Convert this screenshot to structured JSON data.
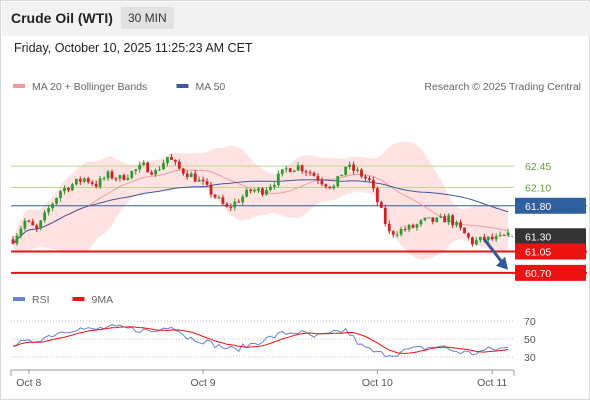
{
  "header": {
    "title": "Crude Oil (WTI)",
    "interval": "30 MIN",
    "datetime": "Friday, October 10, 2025 11:25:23 AM CET",
    "credit": "Research © 2025 Trading Central"
  },
  "colors": {
    "up_candle": "#2e9b2e",
    "down_candle": "#cc2222",
    "bollinger_fill": "#ffd9d9",
    "ma20": "#f29a9a",
    "ma50": "#3d5a99",
    "resistance_line": "#b5d98a",
    "pivot_line": "#2f5f9f",
    "support_line": "#ee1111",
    "current_price_box": "#333333",
    "arrow": "#2e5a9c",
    "rsi": "#6a7fd6",
    "rsi_ma": "#ee1111"
  },
  "chart_data": {
    "type": "candlestick",
    "instrument": "Crude Oil (WTI)",
    "timeframe": "30 MIN",
    "legend": [
      {
        "label": "MA 20 + Bollinger Bands",
        "color": "#f29a9a"
      },
      {
        "label": "MA 50",
        "color": "#3d5a99"
      }
    ],
    "ylim": [
      60.55,
      63.6
    ],
    "x_ticks": [
      "Oct 8",
      "Oct 9",
      "Oct 10",
      "Oct 11"
    ],
    "x_tick_index": [
      4,
      48,
      92,
      121
    ],
    "n_bars": 126,
    "levels": [
      {
        "label": "62.45",
        "value": 62.45,
        "kind": "resistance",
        "boxed": false
      },
      {
        "label": "62.10",
        "value": 62.1,
        "kind": "resistance",
        "boxed": false
      },
      {
        "label": "61.80",
        "value": 61.8,
        "kind": "pivot",
        "boxed": true
      },
      {
        "label": "61.30",
        "value": 61.3,
        "kind": "current",
        "boxed": true
      },
      {
        "label": "61.05",
        "value": 61.05,
        "kind": "support",
        "boxed": true
      },
      {
        "label": "60.70",
        "value": 60.7,
        "kind": "support",
        "boxed": true
      }
    ],
    "arrow": {
      "from_index": 119,
      "from_value": 61.25,
      "to_index": 126,
      "to_value": 60.75
    },
    "anchors": [
      [
        0,
        61.25
      ],
      [
        3,
        61.55
      ],
      [
        6,
        61.4
      ],
      [
        9,
        61.75
      ],
      [
        12,
        62.05
      ],
      [
        15,
        62.15
      ],
      [
        18,
        62.25
      ],
      [
        21,
        62.15
      ],
      [
        24,
        62.3
      ],
      [
        27,
        62.25
      ],
      [
        30,
        62.35
      ],
      [
        33,
        62.45
      ],
      [
        36,
        62.35
      ],
      [
        39,
        62.6
      ],
      [
        42,
        62.4
      ],
      [
        45,
        62.3
      ],
      [
        48,
        62.15
      ],
      [
        51,
        61.95
      ],
      [
        54,
        61.75
      ],
      [
        57,
        61.9
      ],
      [
        60,
        62.05
      ],
      [
        63,
        62.05
      ],
      [
        66,
        62.2
      ],
      [
        69,
        62.4
      ],
      [
        72,
        62.45
      ],
      [
        75,
        62.35
      ],
      [
        78,
        62.2
      ],
      [
        81,
        62.1
      ],
      [
        84,
        62.45
      ],
      [
        87,
        62.35
      ],
      [
        90,
        62.2
      ],
      [
        93,
        61.7
      ],
      [
        95,
        61.35
      ],
      [
        98,
        61.4
      ],
      [
        101,
        61.45
      ],
      [
        104,
        61.55
      ],
      [
        107,
        61.55
      ],
      [
        110,
        61.6
      ],
      [
        113,
        61.4
      ],
      [
        116,
        61.2
      ],
      [
        119,
        61.25
      ],
      [
        122,
        61.25
      ],
      [
        125,
        61.3
      ]
    ],
    "rsi": {
      "legend": [
        {
          "label": "RSI",
          "color": "#6a7fd6"
        },
        {
          "label": "9MA",
          "color": "#ee1111"
        }
      ],
      "ylim": [
        20,
        80
      ],
      "ticks": [
        "70",
        "50",
        "30"
      ],
      "tick_values": [
        70,
        50,
        30
      ],
      "anchors": [
        [
          0,
          45
        ],
        [
          4,
          46
        ],
        [
          8,
          52
        ],
        [
          12,
          58
        ],
        [
          16,
          62
        ],
        [
          20,
          60
        ],
        [
          24,
          63
        ],
        [
          28,
          62
        ],
        [
          32,
          60
        ],
        [
          36,
          58
        ],
        [
          40,
          66
        ],
        [
          44,
          52
        ],
        [
          48,
          48
        ],
        [
          52,
          42
        ],
        [
          56,
          38
        ],
        [
          60,
          44
        ],
        [
          64,
          50
        ],
        [
          68,
          56
        ],
        [
          72,
          58
        ],
        [
          76,
          52
        ],
        [
          80,
          55
        ],
        [
          84,
          60
        ],
        [
          88,
          42
        ],
        [
          92,
          34
        ],
        [
          96,
          33
        ],
        [
          100,
          38
        ],
        [
          104,
          40
        ],
        [
          108,
          42
        ],
        [
          112,
          36
        ],
        [
          116,
          34
        ],
        [
          120,
          38
        ],
        [
          125,
          40
        ]
      ]
    }
  }
}
